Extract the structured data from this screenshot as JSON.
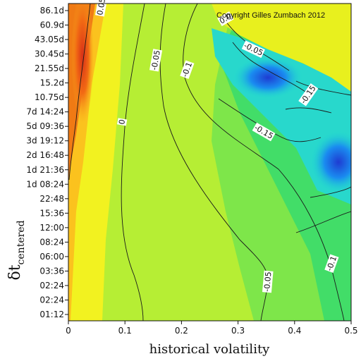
{
  "chart_data": {
    "type": "heatmap",
    "subtype": "contour",
    "xlabel": "historical volatility",
    "ylabel_main": "δt",
    "ylabel_sub": "centered",
    "x_ticks": [
      "0",
      "0.1",
      "0.2",
      "0.3",
      "0.4",
      "0.5"
    ],
    "x_range": [
      0,
      0.5
    ],
    "y_ticks": [
      "86.1d",
      "60.9d",
      "43.05d",
      "30.45d",
      "21.55d",
      "15.2d",
      "10.75d",
      "7d 14:24",
      "5d 09:36",
      "3d 19:12",
      "2d 16:48",
      "1d 21:36",
      "1d 08:24",
      "22:48",
      "15:36",
      "12:00",
      "08:24",
      "06:00",
      "03:36",
      "02:24",
      "02:24",
      "01:12"
    ],
    "colormap": [
      "#c81e1e",
      "#ff7a10",
      "#ffd21e",
      "#ffff00",
      "#b4f01e",
      "#3ce650",
      "#00e6c8",
      "#0082ff",
      "#1e28c8"
    ],
    "colormap_meaning": "high (red) to low (blue)",
    "contour_levels": [
      0.05,
      0,
      -0.05,
      -0.1,
      -0.15
    ],
    "contour_labels": [
      "0.05",
      "0",
      "-0.05",
      "-0.1",
      "-0.15",
      "-0.05",
      "-0.1",
      "-0.15",
      "-0.05",
      "-0.1",
      "-0.1",
      "0.0"
    ],
    "annotation": "Copyright Gilles Zumbach 2012"
  }
}
